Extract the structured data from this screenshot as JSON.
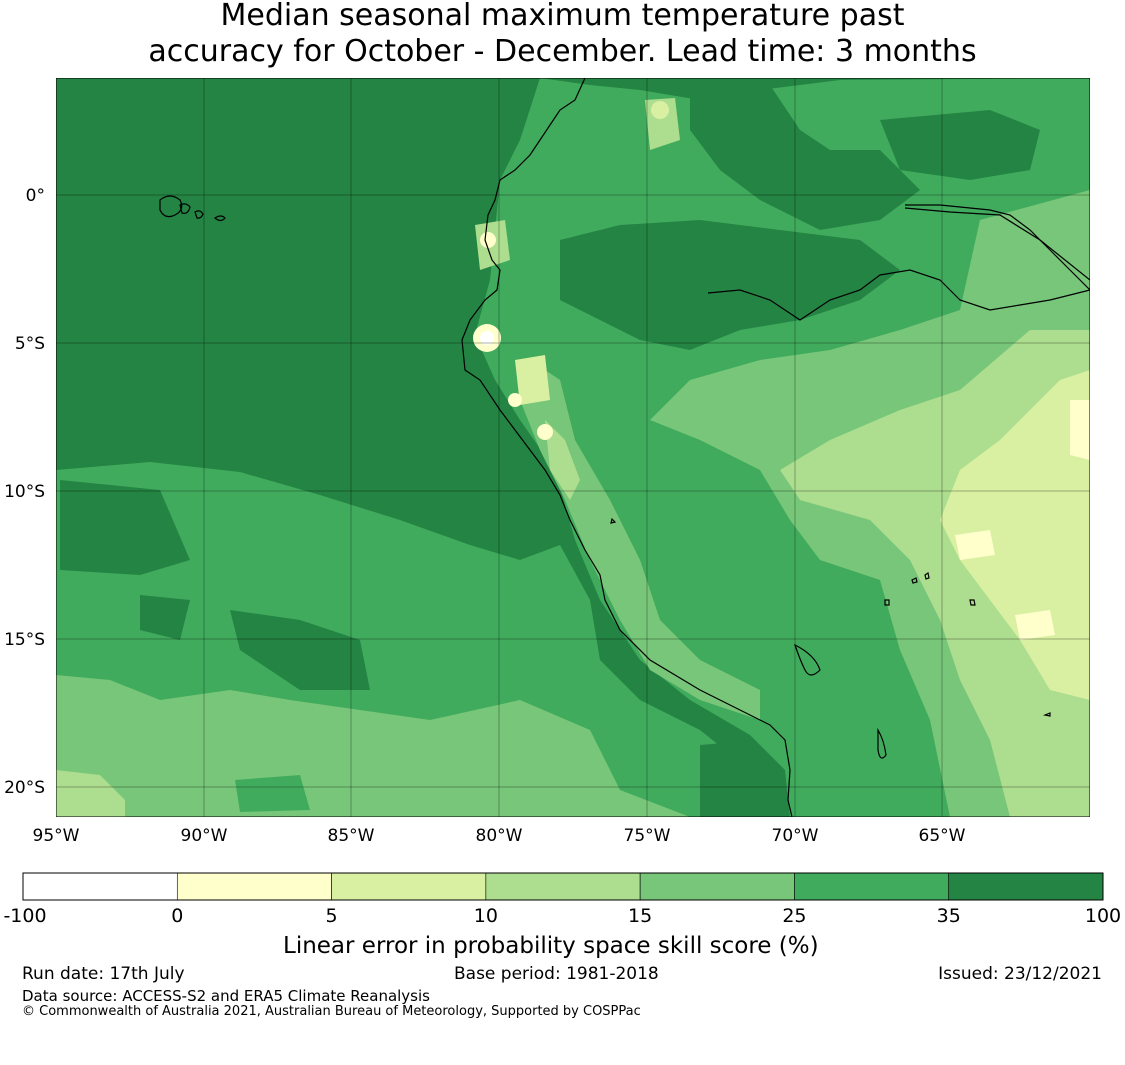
{
  "title": {
    "line1": "Median seasonal maximum temperature past",
    "line2": "accuracy for October - December. Lead time: 3 months"
  },
  "map": {
    "x_ticks": [
      "95°W",
      "90°W",
      "85°W",
      "80°W",
      "75°W",
      "70°W",
      "65°W"
    ],
    "y_ticks": [
      "0°",
      "5°S",
      "10°S",
      "15°S",
      "20°S"
    ],
    "colors": {
      "c1": "#ffffff",
      "c2": "#ffffcc",
      "c3": "#d9f0a3",
      "c4": "#addd8e",
      "c5": "#78c679",
      "c6": "#41ab5d",
      "c7": "#238443"
    }
  },
  "colorbar": {
    "bins": [
      {
        "color": "#ffffff"
      },
      {
        "color": "#ffffcc"
      },
      {
        "color": "#d9f0a3"
      },
      {
        "color": "#addd8e"
      },
      {
        "color": "#78c679"
      },
      {
        "color": "#41ab5d"
      },
      {
        "color": "#238443"
      }
    ],
    "tick_labels": [
      "-100",
      "0",
      "5",
      "10",
      "15",
      "25",
      "35",
      "100"
    ],
    "label": "Linear error in probability space skill score (%)"
  },
  "footer": {
    "run_date": "Run date: 17th July",
    "base_period": "Base period: 1981-2018",
    "issued": "Issued: 23/12/2021",
    "data_source": "Data source: ACCESS-S2 and ERA5 Climate Reanalysis",
    "copyright": "© Commonwealth of Australia 2021, Australian Bureau of Meteorology, Supported by COSPPac"
  }
}
